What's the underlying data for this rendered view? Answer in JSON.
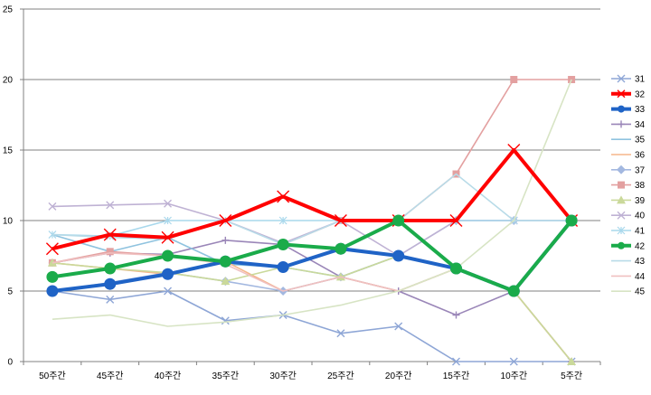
{
  "chart_data": {
    "type": "line",
    "title": "",
    "xlabel": "",
    "ylabel": "",
    "ylim": [
      0,
      25
    ],
    "yticks": [
      0,
      5,
      10,
      15,
      20,
      25
    ],
    "grid": "horizontal",
    "legend_placement": "right",
    "categories": [
      "50주간",
      "45주간",
      "40주간",
      "35주간",
      "30주간",
      "25주간",
      "20주간",
      "15주간",
      "10주간",
      "5주간"
    ],
    "series": [
      {
        "name": "31",
        "color": "#8ea6d6",
        "marker": "x",
        "values": [
          5,
          4.4,
          5,
          2.9,
          3.3,
          2,
          2.5,
          0,
          0,
          0
        ]
      },
      {
        "name": "32",
        "color": "#ff0000",
        "marker": "x",
        "values": [
          8,
          9,
          8.8,
          10,
          11.7,
          10,
          10,
          10,
          15,
          10
        ]
      },
      {
        "name": "33",
        "color": "#1f63c6",
        "marker": "circle",
        "values": [
          5,
          5.5,
          6.2,
          7.1,
          6.7,
          8,
          7.5,
          6.6,
          5,
          10
        ]
      },
      {
        "name": "34",
        "color": "#9a86b8",
        "marker": "plus",
        "values": [
          7,
          7.7,
          7.6,
          8.6,
          8.3,
          6,
          5,
          3.3,
          5,
          0
        ]
      },
      {
        "name": "35",
        "color": "#8fc3df",
        "marker": "none",
        "values": [
          9,
          7.8,
          8.8,
          6.9,
          6.7,
          6,
          7.5,
          6.6,
          5,
          10
        ]
      },
      {
        "name": "36",
        "color": "#f5b58a",
        "marker": "none",
        "values": [
          7,
          6.6,
          6.2,
          7.1,
          5,
          6,
          5,
          6.6,
          5,
          0
        ]
      },
      {
        "name": "37",
        "color": "#a3b8e0",
        "marker": "diamond",
        "values": [
          5,
          5.6,
          6.3,
          5.7,
          5,
          6,
          7.5,
          10,
          10,
          10
        ]
      },
      {
        "name": "38",
        "color": "#e3a0a0",
        "marker": "square",
        "values": [
          7,
          7.8,
          7.5,
          7.1,
          8.3,
          10,
          10,
          13.3,
          20,
          20
        ]
      },
      {
        "name": "39",
        "color": "#cad99a",
        "marker": "triangle",
        "values": [
          7,
          6.6,
          6.3,
          5.7,
          6.7,
          6,
          7.5,
          6.6,
          5,
          0
        ]
      },
      {
        "name": "40",
        "color": "#bfb2d4",
        "marker": "x",
        "values": [
          11,
          11.1,
          11.2,
          10,
          8.4,
          10,
          7.5,
          10,
          10,
          10
        ]
      },
      {
        "name": "41",
        "color": "#a9d8ec",
        "marker": "star",
        "values": [
          9,
          8.9,
          10,
          10,
          10,
          10,
          10,
          10,
          10,
          10
        ]
      },
      {
        "name": "42",
        "color": "#1aab4a",
        "marker": "circle",
        "values": [
          6,
          6.6,
          7.5,
          7.1,
          8.3,
          8,
          10,
          6.6,
          5,
          10
        ]
      },
      {
        "name": "43",
        "color": "#b8dbe8",
        "marker": "none",
        "values": [
          9,
          8.8,
          8.7,
          10,
          8.3,
          10,
          10,
          13.3,
          10,
          10
        ]
      },
      {
        "name": "44",
        "color": "#f0c0c0",
        "marker": "none",
        "values": [
          7,
          7.7,
          7.5,
          6.9,
          5,
          6,
          5,
          6.6,
          5,
          10
        ]
      },
      {
        "name": "45",
        "color": "#d7e4c4",
        "marker": "none",
        "values": [
          3,
          3.3,
          2.5,
          2.8,
          3.3,
          4,
          5,
          6.6,
          10,
          20
        ]
      }
    ]
  }
}
